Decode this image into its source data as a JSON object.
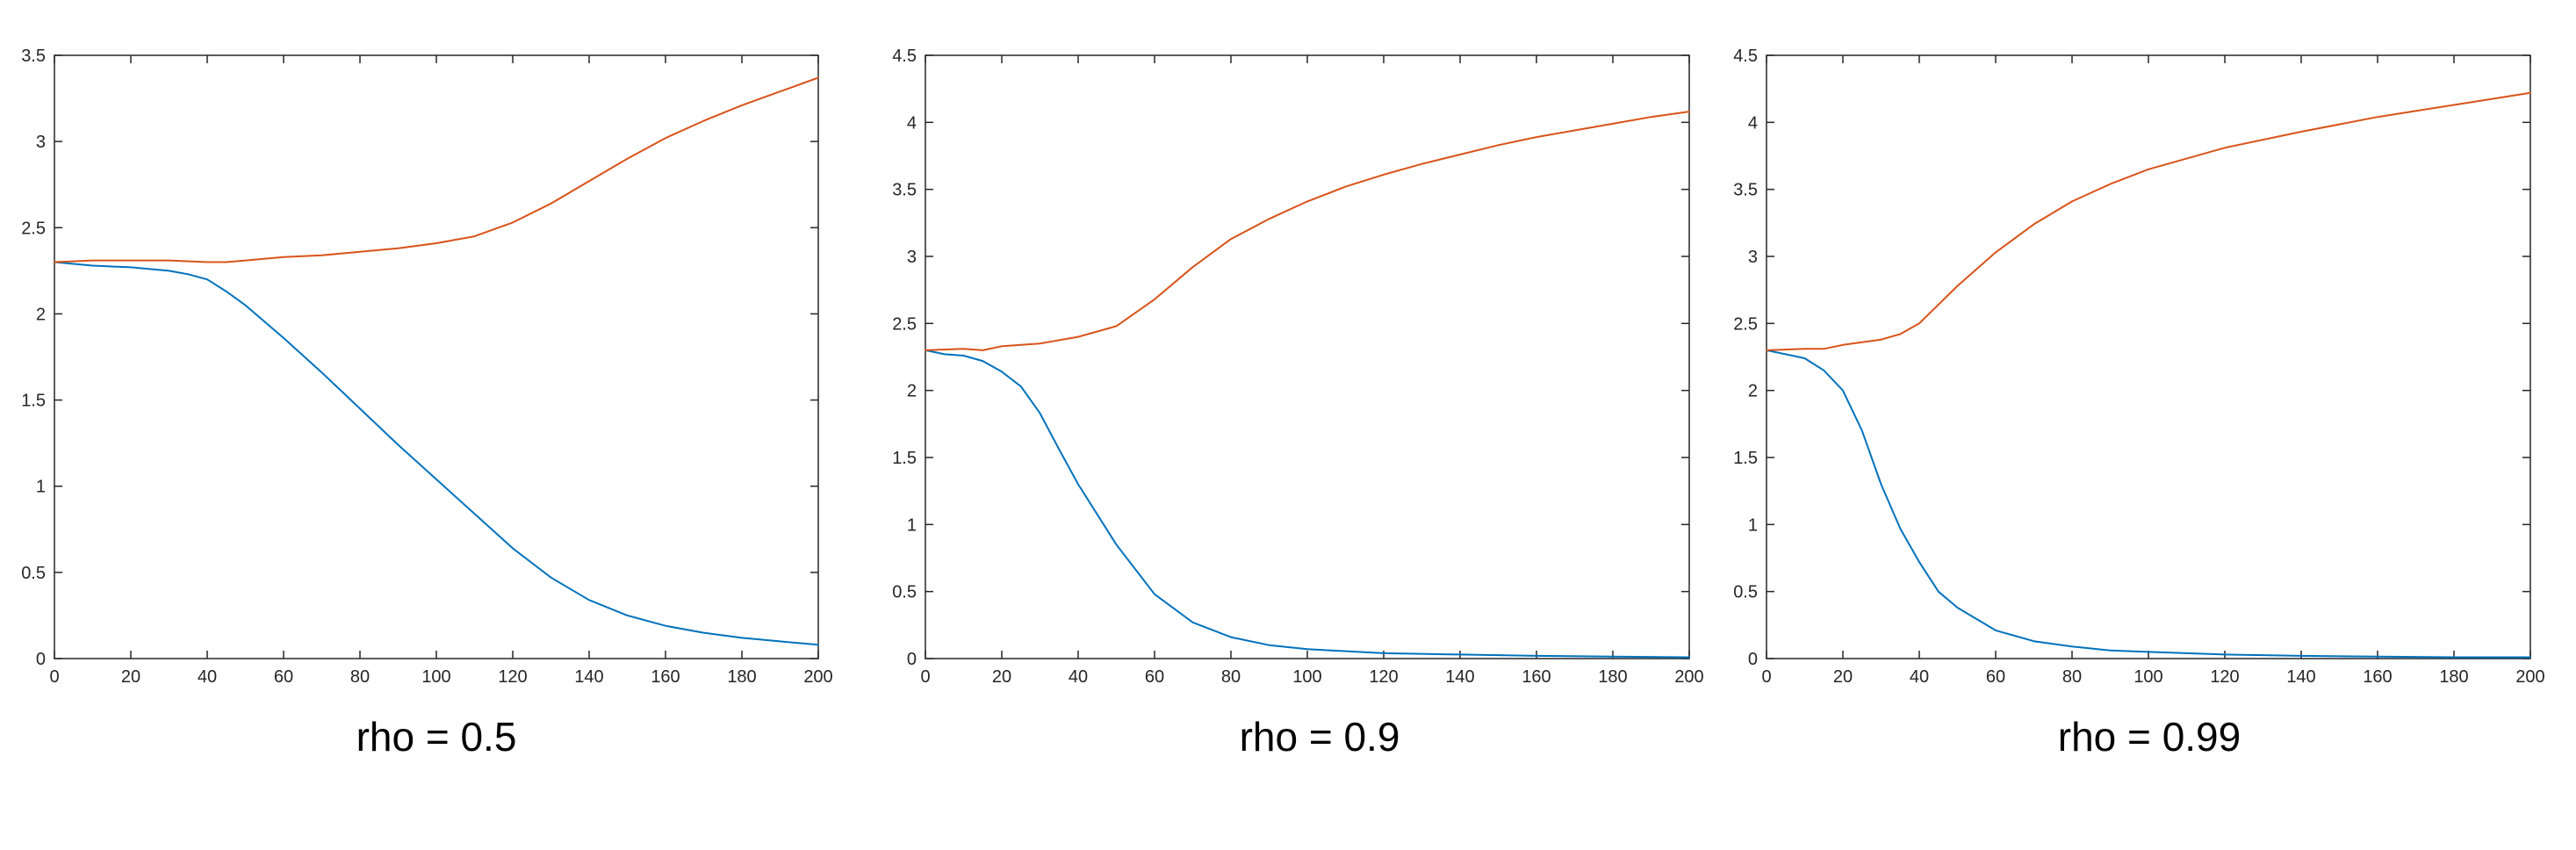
{
  "chart_data": [
    {
      "type": "line",
      "caption": "rho = 0.5",
      "xlim": [
        0,
        200
      ],
      "ylim": [
        0,
        3.5
      ],
      "xticks": [
        "0",
        "20",
        "40",
        "60",
        "80",
        "100",
        "120",
        "140",
        "160",
        "180",
        "200"
      ],
      "yticks": [
        "0",
        "0.5",
        "1",
        "1.5",
        "2",
        "2.5",
        "3",
        "3.5"
      ],
      "grid": false,
      "series": [
        {
          "color": "#0072BD",
          "x": [
            0,
            10,
            20,
            30,
            35,
            40,
            45,
            50,
            60,
            70,
            80,
            90,
            100,
            110,
            120,
            130,
            140,
            150,
            160,
            170,
            180,
            190,
            200
          ],
          "y": [
            2.3,
            2.28,
            2.27,
            2.25,
            2.23,
            2.2,
            2.13,
            2.05,
            1.86,
            1.66,
            1.45,
            1.24,
            1.04,
            0.84,
            0.64,
            0.47,
            0.34,
            0.25,
            0.19,
            0.15,
            0.12,
            0.1,
            0.08
          ]
        },
        {
          "color": "#D95319",
          "x": [
            0,
            10,
            20,
            30,
            40,
            45,
            50,
            60,
            70,
            80,
            90,
            100,
            110,
            120,
            130,
            140,
            150,
            160,
            170,
            180,
            190,
            200
          ],
          "y": [
            2.3,
            2.31,
            2.31,
            2.31,
            2.3,
            2.3,
            2.31,
            2.33,
            2.34,
            2.36,
            2.38,
            2.41,
            2.45,
            2.53,
            2.64,
            2.77,
            2.9,
            3.02,
            3.12,
            3.21,
            3.29,
            3.37
          ]
        }
      ]
    },
    {
      "type": "line",
      "caption": "rho = 0.9",
      "xlim": [
        0,
        200
      ],
      "ylim": [
        0,
        4.5
      ],
      "xticks": [
        "0",
        "20",
        "40",
        "60",
        "80",
        "100",
        "120",
        "140",
        "160",
        "180",
        "200"
      ],
      "yticks": [
        "0",
        "0.5",
        "1",
        "1.5",
        "2",
        "2.5",
        "3",
        "3.5",
        "4",
        "4.5"
      ],
      "grid": false,
      "series": [
        {
          "color": "#0072BD",
          "x": [
            0,
            5,
            10,
            15,
            20,
            25,
            30,
            35,
            40,
            50,
            60,
            70,
            80,
            90,
            100,
            120,
            140,
            160,
            180,
            200
          ],
          "y": [
            2.3,
            2.27,
            2.26,
            2.22,
            2.14,
            2.03,
            1.83,
            1.56,
            1.3,
            0.85,
            0.48,
            0.27,
            0.16,
            0.1,
            0.07,
            0.04,
            0.03,
            0.02,
            0.015,
            0.01
          ]
        },
        {
          "color": "#D95319",
          "x": [
            0,
            10,
            15,
            20,
            30,
            40,
            50,
            60,
            70,
            80,
            90,
            100,
            110,
            120,
            130,
            140,
            150,
            160,
            170,
            180,
            190,
            200
          ],
          "y": [
            2.3,
            2.31,
            2.3,
            2.33,
            2.35,
            2.4,
            2.48,
            2.68,
            2.92,
            3.13,
            3.28,
            3.41,
            3.52,
            3.61,
            3.69,
            3.76,
            3.83,
            3.89,
            3.94,
            3.99,
            4.04,
            4.08
          ]
        }
      ]
    },
    {
      "type": "line",
      "caption": "rho = 0.99",
      "xlim": [
        0,
        200
      ],
      "ylim": [
        0,
        4.5
      ],
      "xticks": [
        "0",
        "20",
        "40",
        "60",
        "80",
        "100",
        "120",
        "140",
        "160",
        "180",
        "200"
      ],
      "yticks": [
        "0",
        "0.5",
        "1",
        "1.5",
        "2",
        "2.5",
        "3",
        "3.5",
        "4",
        "4.5"
      ],
      "grid": false,
      "series": [
        {
          "color": "#0072BD",
          "x": [
            0,
            5,
            10,
            15,
            20,
            25,
            30,
            35,
            40,
            45,
            50,
            60,
            70,
            80,
            90,
            100,
            120,
            140,
            160,
            180,
            200
          ],
          "y": [
            2.3,
            2.27,
            2.24,
            2.15,
            2.0,
            1.7,
            1.3,
            0.97,
            0.72,
            0.5,
            0.38,
            0.21,
            0.13,
            0.09,
            0.06,
            0.05,
            0.03,
            0.02,
            0.015,
            0.01,
            0.01
          ]
        },
        {
          "color": "#D95319",
          "x": [
            0,
            10,
            15,
            20,
            30,
            35,
            40,
            50,
            60,
            70,
            80,
            90,
            100,
            120,
            140,
            160,
            180,
            200
          ],
          "y": [
            2.3,
            2.31,
            2.31,
            2.34,
            2.38,
            2.42,
            2.5,
            2.78,
            3.03,
            3.24,
            3.41,
            3.54,
            3.65,
            3.81,
            3.93,
            4.04,
            4.13,
            4.22
          ]
        }
      ]
    }
  ]
}
